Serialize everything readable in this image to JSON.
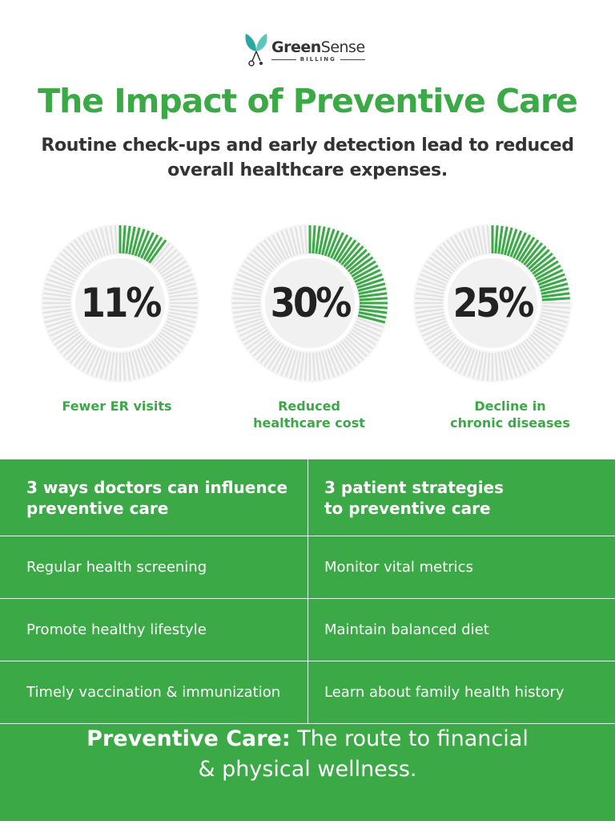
{
  "brand": {
    "name_bold": "Green",
    "name_rest": "Sense",
    "sub": "BILLING"
  },
  "title": "The Impact of Preventive Care",
  "subtitle_line1": "Routine check-ups and early detection lead to reduced",
  "subtitle_line2": "overall healthcare expenses.",
  "colors": {
    "accent": "#3aa946",
    "track": "#e8e8e8"
  },
  "chart_data": {
    "type": "gauge",
    "items": [
      {
        "value": 11,
        "display": "11%",
        "label1": "Fewer ER visits",
        "label2": ""
      },
      {
        "value": 30,
        "display": "30%",
        "label1": "Reduced",
        "label2": "healthcare cost"
      },
      {
        "value": 25,
        "display": "25%",
        "label1": "Decline in",
        "label2": "chronic diseases"
      }
    ]
  },
  "table": {
    "headers": [
      [
        "3 ways doctors can influence",
        "preventive care"
      ],
      [
        "3 patient strategies",
        "to preventive care"
      ]
    ],
    "rows": [
      [
        "Regular health screening",
        "Monitor vital metrics"
      ],
      [
        "Promote healthy lifestyle",
        "Maintain balanced diet"
      ],
      [
        "Timely vaccination & immunization",
        "Learn about family health history"
      ]
    ]
  },
  "footer": {
    "bold": "Preventive Care:",
    "rest": " The route to financial",
    "line2": "& physical wellness."
  }
}
